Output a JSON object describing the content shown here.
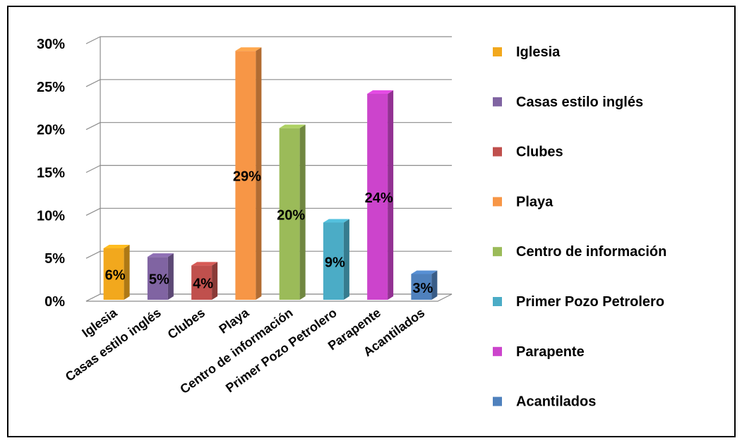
{
  "chart_data": {
    "type": "bar",
    "categories": [
      "Iglesia",
      "Casas estilo inglés",
      "Clubes",
      "Playa",
      "Centro de información",
      "Primer Pozo Petrolero",
      "Parapente",
      "Acantilados"
    ],
    "values": [
      6,
      5,
      4,
      29,
      20,
      9,
      24,
      3
    ],
    "data_labels": [
      "6%",
      "5%",
      "4%",
      "29%",
      "20%",
      "9%",
      "24%",
      "3%"
    ],
    "colors": [
      "#F2A81D",
      "#8064A2",
      "#C0504D",
      "#F79646",
      "#9BBB59",
      "#4BACC6",
      "#CC44CC",
      "#4F81BD"
    ],
    "y_ticks": [
      "0%",
      "5%",
      "10%",
      "15%",
      "20%",
      "25%",
      "30%"
    ],
    "ylim": [
      0,
      30
    ],
    "grid": true,
    "legend_position": "right",
    "style": "3d-column"
  }
}
